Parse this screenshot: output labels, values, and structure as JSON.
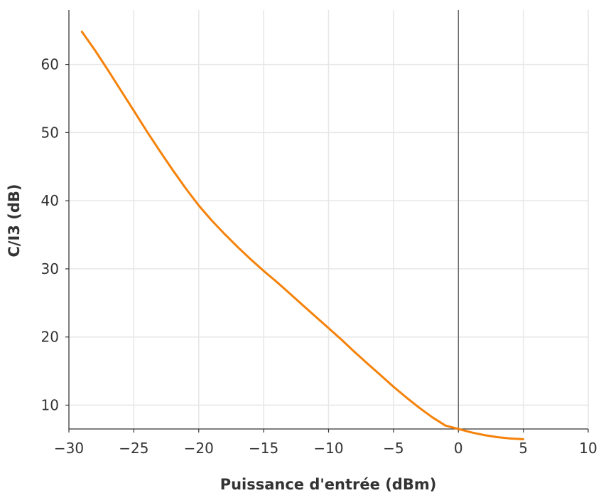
{
  "chart_data": {
    "type": "line",
    "title": "",
    "xlabel": "Puissance d'entrée (dBm)",
    "ylabel": "C/I3 (dB)",
    "xlim": [
      -30,
      10
    ],
    "ylim": [
      6.5,
      68
    ],
    "xticks": [
      -30,
      -25,
      -20,
      -15,
      -10,
      -5,
      0,
      5,
      10
    ],
    "xtick_labels": [
      "−30",
      "−25",
      "−20",
      "−15",
      "−10",
      "−5",
      "0",
      "5",
      "10"
    ],
    "yticks": [
      10,
      20,
      30,
      40,
      50,
      60
    ],
    "ytick_labels": [
      "10",
      "20",
      "30",
      "40",
      "50",
      "60"
    ],
    "grid": true,
    "reference_line_x": 0,
    "series": [
      {
        "color": "#f5820a",
        "x": [
          -29,
          -28,
          -27,
          -26,
          -25,
          -24,
          -23,
          -22,
          -21,
          -20,
          -19,
          -18,
          -17,
          -16,
          -15,
          -14,
          -13,
          -12,
          -11,
          -10,
          -9,
          -8,
          -7,
          -6,
          -5,
          -4,
          -3,
          -2,
          -1,
          0,
          1,
          2,
          3,
          4,
          5
        ],
        "y": [
          64.8,
          62.1,
          59.2,
          56.2,
          53.2,
          50.2,
          47.3,
          44.5,
          41.8,
          39.3,
          37.1,
          35.1,
          33.2,
          31.4,
          29.7,
          28.1,
          26.4,
          24.7,
          23.0,
          21.3,
          19.6,
          17.8,
          16.1,
          14.4,
          12.7,
          11.1,
          9.6,
          8.2,
          7.0,
          6.5,
          6.0,
          5.6,
          5.3,
          5.1,
          5.0
        ]
      }
    ]
  }
}
